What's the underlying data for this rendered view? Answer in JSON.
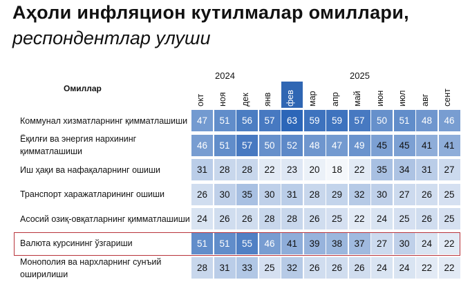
{
  "title": "Аҳоли инфляцион кутилмалар омиллари,",
  "subtitle": "респондентлар улуши",
  "column_header": "Омиллар",
  "colors": {
    "cell_light": "#f4f7fb",
    "cell_dark": "#2c66b8",
    "header_highlight": "#2f66b3",
    "row_highlight_border": "#b8323a"
  },
  "chart_data": {
    "type": "heatmap",
    "title": "Аҳоли инфляцион кутилмалар омиллари, респондентлар улуши",
    "years": [
      "2024",
      "2025"
    ],
    "months": [
      "окт",
      "ноя",
      "дек",
      "янв",
      "фев",
      "мар",
      "апр",
      "май",
      "июн",
      "июл",
      "авг",
      "сент"
    ],
    "highlighted_month": "фев",
    "highlighted_row": "Валюта курсининг ўзгариши",
    "rows": [
      {
        "label": [
          "Коммунал хизматларнинг қимматлашиши"
        ],
        "values": [
          47,
          51,
          56,
          57,
          63,
          59,
          59,
          57,
          50,
          51,
          48,
          46
        ]
      },
      {
        "label": [
          "Ёқилғи ва энергия нархининг",
          "қимматлашиши"
        ],
        "values": [
          46,
          51,
          57,
          50,
          52,
          48,
          47,
          49,
          45,
          45,
          41,
          41
        ]
      },
      {
        "label": [
          "Иш ҳақи ва нафақаларнинг ошиши"
        ],
        "values": [
          31,
          28,
          28,
          22,
          23,
          20,
          18,
          22,
          35,
          34,
          31,
          27
        ]
      },
      {
        "label": [
          "Транспорт харажатларининг ошиши"
        ],
        "values": [
          26,
          30,
          35,
          30,
          31,
          28,
          29,
          32,
          30,
          27,
          26,
          25
        ]
      },
      {
        "label": [
          "Асосий озиқ-овқатларнинг қимматлашиши"
        ],
        "values": [
          24,
          26,
          26,
          28,
          28,
          26,
          25,
          22,
          24,
          25,
          26,
          25
        ]
      },
      {
        "label": [
          "Валюта курсининг ўзгариши"
        ],
        "values": [
          51,
          51,
          55,
          46,
          41,
          39,
          38,
          37,
          27,
          30,
          24,
          22
        ]
      },
      {
        "label": [
          "Монополия ва нархларнинг сунъий",
          "оширилиши"
        ],
        "values": [
          28,
          31,
          33,
          25,
          32,
          26,
          26,
          26,
          24,
          24,
          22,
          22
        ]
      }
    ]
  }
}
